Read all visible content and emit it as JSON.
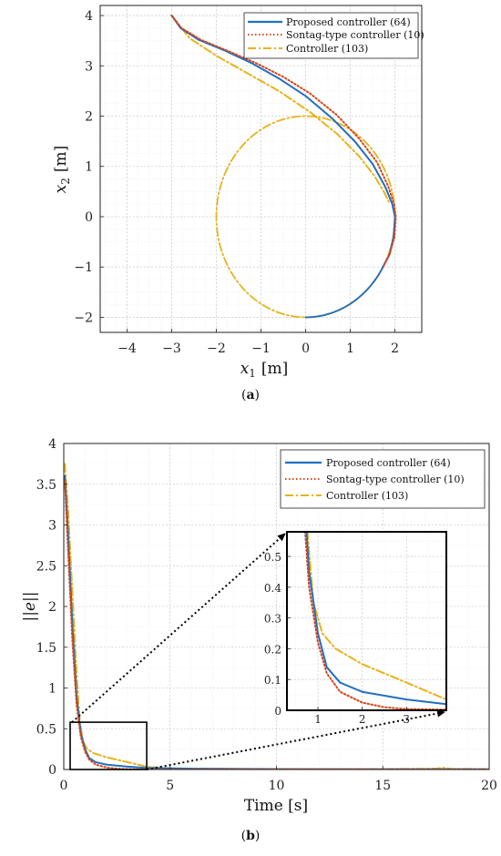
{
  "colors": {
    "proposed": "#1f6fc0",
    "sontag": "#d9451b",
    "controller103": "#e8b21c"
  },
  "chart_data": [
    {
      "type": "line",
      "id": "a",
      "caption_label": "a",
      "xlabel": "x",
      "xlabel_sub": "1",
      "xlabel_unit": "[m]",
      "ylabel": "x",
      "ylabel_sub": "2",
      "ylabel_unit": "[m]",
      "xlim": [
        -4.6,
        2.6
      ],
      "ylim": [
        -2.3,
        4.2
      ],
      "xticks": [
        -4,
        -3,
        -2,
        -1,
        0,
        1,
        2
      ],
      "yticks": [
        -2,
        -1,
        0,
        1,
        2,
        3,
        4
      ],
      "xtick_labels": [
        "−4",
        "−3",
        "−2",
        "−1",
        "0",
        "1",
        "2"
      ],
      "ytick_labels": [
        "−2",
        "−1",
        "0",
        "1",
        "2",
        "3",
        "4"
      ],
      "grid": true,
      "legend_placement": "top-right",
      "series": [
        {
          "name": "Proposed controller (64)",
          "style": "solid",
          "color_key": "proposed",
          "points": [
            [
              -3,
              4
            ],
            [
              -2.8,
              3.75
            ],
            [
              -2.4,
              3.52
            ],
            [
              -1.8,
              3.3
            ],
            [
              -1.2,
              3.05
            ],
            [
              -0.6,
              2.75
            ],
            [
              0.0,
              2.4
            ],
            [
              0.6,
              1.95
            ],
            [
              1.1,
              1.5
            ],
            [
              1.5,
              1.05
            ],
            [
              1.78,
              0.6
            ],
            [
              1.94,
              0.25
            ],
            [
              2.0,
              0.0
            ],
            [
              1.97,
              -0.4
            ],
            [
              1.88,
              -0.75
            ],
            [
              1.73,
              -1.0
            ]
          ],
          "circle": {
            "cx": 0,
            "cy": 0,
            "r": 2,
            "from_deg": -30,
            "to_deg": -90
          }
        },
        {
          "name": "Sontag-type controller (10)",
          "style": "dotted",
          "color_key": "sontag",
          "points": [
            [
              -3,
              4
            ],
            [
              -2.78,
              3.75
            ],
            [
              -2.35,
              3.52
            ],
            [
              -1.75,
              3.3
            ],
            [
              -1.1,
              3.05
            ],
            [
              -0.5,
              2.78
            ],
            [
              0.1,
              2.45
            ],
            [
              0.7,
              2.02
            ],
            [
              1.2,
              1.55
            ],
            [
              1.6,
              1.08
            ],
            [
              1.85,
              0.6
            ],
            [
              1.98,
              0.25
            ],
            [
              2.02,
              0.0
            ],
            [
              1.99,
              -0.4
            ],
            [
              1.88,
              -0.75
            ],
            [
              1.73,
              -1.0
            ]
          ],
          "circle": {
            "cx": 0,
            "cy": 0,
            "r": 2,
            "from_deg": -30,
            "to_deg": -90
          }
        },
        {
          "name": "Controller (103)",
          "style": "dashdot",
          "color_key": "controller103",
          "points": [
            [
              -3,
              4
            ],
            [
              -2.6,
              3.55
            ],
            [
              -2.0,
              3.2
            ],
            [
              -1.3,
              2.85
            ],
            [
              -0.6,
              2.5
            ],
            [
              0.1,
              2.08
            ],
            [
              0.7,
              1.65
            ],
            [
              1.2,
              1.2
            ],
            [
              1.55,
              0.8
            ],
            [
              1.75,
              0.5
            ],
            [
              1.86,
              0.3
            ]
          ],
          "circle": {
            "cx": 0,
            "cy": 0,
            "r": 2,
            "from_deg": 0,
            "to_deg": 360
          }
        }
      ]
    },
    {
      "type": "line",
      "id": "b",
      "caption_label": "b",
      "xlabel": "Time [s]",
      "ylabel": "||e||",
      "xlim": [
        0,
        20
      ],
      "ylim": [
        0,
        4
      ],
      "xticks": [
        0,
        5,
        10,
        15,
        20
      ],
      "yticks": [
        0,
        0.5,
        1,
        1.5,
        2,
        2.5,
        3,
        3.5,
        4
      ],
      "xtick_labels": [
        "0",
        "5",
        "10",
        "15",
        "20"
      ],
      "ytick_labels": [
        "0",
        "0.5",
        "1",
        "1.5",
        "2",
        "2.5",
        "3",
        "3.5",
        "4"
      ],
      "grid": true,
      "legend_placement": "top-right",
      "zoom_box": {
        "x": [
          0.3,
          3.9
        ],
        "y": [
          0,
          0.58
        ]
      },
      "series": [
        {
          "name": "Proposed controller (64)",
          "style": "solid",
          "color_key": "proposed",
          "points": [
            [
              0.05,
              3.6
            ],
            [
              0.2,
              2.9
            ],
            [
              0.4,
              1.8
            ],
            [
              0.6,
              0.9
            ],
            [
              0.8,
              0.45
            ],
            [
              1.0,
              0.25
            ],
            [
              1.2,
              0.14
            ],
            [
              1.5,
              0.09
            ],
            [
              2.0,
              0.06
            ],
            [
              3.0,
              0.035
            ],
            [
              3.9,
              0.02
            ],
            [
              6,
              0.01
            ],
            [
              10,
              0.004
            ],
            [
              20,
              0.002
            ]
          ]
        },
        {
          "name": "Sontag-type controller (10)",
          "style": "dotted",
          "color_key": "sontag",
          "points": [
            [
              0.05,
              3.55
            ],
            [
              0.2,
              2.7
            ],
            [
              0.4,
              1.6
            ],
            [
              0.6,
              0.8
            ],
            [
              0.8,
              0.4
            ],
            [
              1.0,
              0.22
            ],
            [
              1.2,
              0.12
            ],
            [
              1.5,
              0.06
            ],
            [
              2.0,
              0.025
            ],
            [
              2.5,
              0.01
            ],
            [
              3.0,
              0.004
            ],
            [
              4,
              0.002
            ],
            [
              20,
              0.0
            ]
          ]
        },
        {
          "name": "Controller (103)",
          "style": "dashdot",
          "color_key": "controller103",
          "points": [
            [
              0.05,
              3.75
            ],
            [
              0.2,
              3.2
            ],
            [
              0.4,
              2.2
            ],
            [
              0.6,
              1.2
            ],
            [
              0.75,
              0.6
            ],
            [
              0.9,
              0.35
            ],
            [
              1.1,
              0.25
            ],
            [
              1.4,
              0.2
            ],
            [
              2.0,
              0.15
            ],
            [
              3.0,
              0.09
            ],
            [
              3.9,
              0.035
            ],
            [
              5,
              0.01
            ],
            [
              10,
              0.006
            ],
            [
              15,
              0.005
            ],
            [
              17.5,
              0.01
            ],
            [
              17.8,
              0.02
            ],
            [
              18.2,
              0.008
            ],
            [
              20,
              0.005
            ]
          ]
        }
      ],
      "inset": {
        "xlim": [
          0.3,
          3.9
        ],
        "ylim": [
          0,
          0.58
        ],
        "xticks": [
          1,
          2,
          3
        ],
        "yticks": [
          0,
          0.1,
          0.2,
          0.3,
          0.4,
          0.5
        ],
        "xtick_labels": [
          "1",
          "2",
          "3"
        ],
        "ytick_labels": [
          "0",
          "0.1",
          "0.2",
          "0.3",
          "0.4",
          "0.5"
        ]
      }
    }
  ]
}
